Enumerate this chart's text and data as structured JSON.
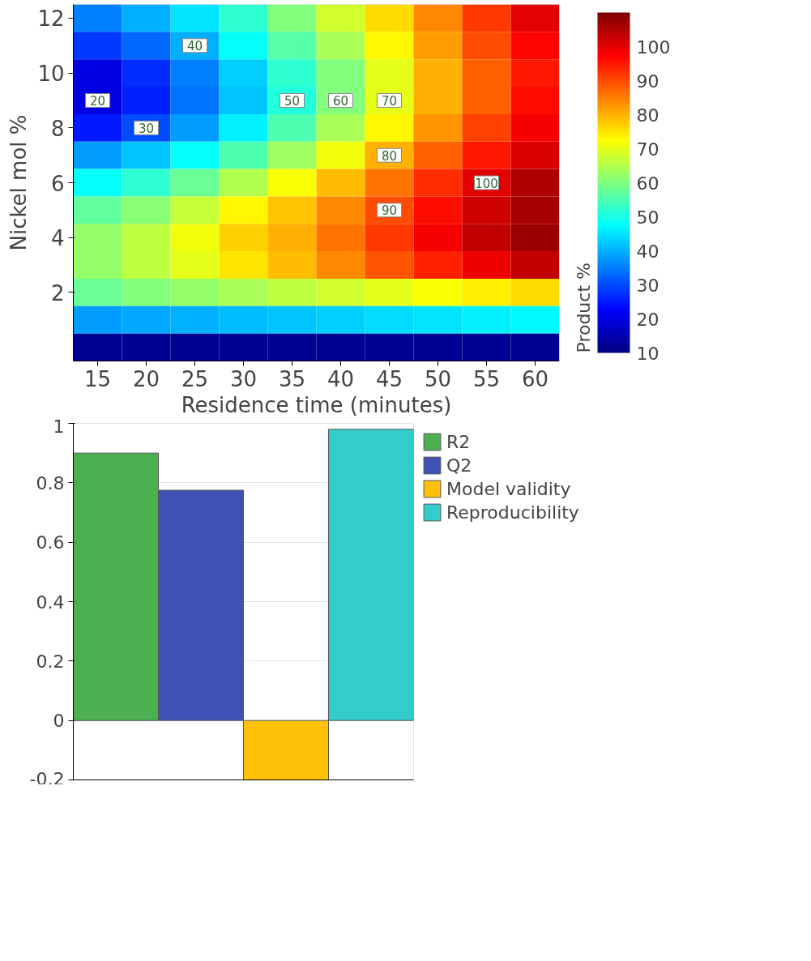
{
  "chart_data": [
    {
      "type": "heatmap",
      "xlabel": "Residence time (minutes)",
      "ylabel": "Nickel mol %",
      "clabel": "Product %",
      "categories": [
        "15",
        "20",
        "25",
        "30",
        "35",
        "40",
        "45",
        "50",
        "55",
        "60"
      ],
      "y_categories": [
        "12",
        null,
        "10",
        null,
        "8",
        null,
        "6",
        null,
        "4",
        null,
        "2",
        null,
        null
      ],
      "cells": [
        [
          35,
          40,
          45,
          52,
          60,
          68,
          76,
          84,
          92,
          100
        ],
        [
          28,
          33,
          40,
          48,
          56,
          64,
          73,
          82,
          90,
          97
        ],
        [
          20,
          27,
          35,
          43,
          52,
          60,
          70,
          80,
          88,
          95
        ],
        [
          20,
          26,
          34,
          42,
          51,
          60,
          70,
          80,
          88,
          96
        ],
        [
          25,
          30,
          38,
          46,
          55,
          64,
          73,
          83,
          91,
          98
        ],
        [
          38,
          42,
          48,
          55,
          63,
          71,
          80,
          88,
          95,
          101
        ],
        [
          48,
          52,
          58,
          65,
          72,
          79,
          86,
          93,
          100,
          105
        ],
        [
          57,
          61,
          67,
          73,
          78,
          84,
          90,
          96,
          102,
          106
        ],
        [
          62,
          66,
          71,
          77,
          80,
          86,
          92,
          98,
          103,
          107
        ],
        [
          62,
          66,
          70,
          75,
          79,
          84,
          89,
          94,
          99,
          103
        ],
        [
          58,
          60,
          62,
          64,
          66,
          68,
          70,
          72,
          74,
          76
        ],
        [
          38,
          39,
          40,
          41,
          42,
          43,
          44,
          45,
          46,
          47
        ],
        [
          12,
          12,
          12,
          12,
          12,
          12,
          12,
          12,
          12,
          12
        ]
      ],
      "clim": [
        10,
        110
      ],
      "cticks": [
        10,
        20,
        30,
        40,
        50,
        60,
        70,
        80,
        90,
        100
      ],
      "annotations": [
        "20",
        "30",
        "40",
        "50",
        "60",
        "70",
        "80",
        "90",
        "100"
      ]
    },
    {
      "type": "bar",
      "categories": [
        null,
        null,
        null,
        null
      ],
      "series": [
        {
          "name": "R2",
          "color": "#4caf50",
          "values": [
            0.9,
            null,
            null,
            null
          ]
        },
        {
          "name": "Q2",
          "color": "#3f51b5",
          "values": [
            null,
            0.775,
            null,
            null
          ]
        },
        {
          "name": "Model validity",
          "color": "#ffc107",
          "values": [
            null,
            null,
            -0.2,
            null
          ]
        },
        {
          "name": "Reproducibility",
          "color": "#33cccc",
          "values": [
            null,
            null,
            null,
            0.98
          ]
        }
      ],
      "ylim": [
        -0.2,
        1
      ],
      "yticks": [
        -0.2,
        0,
        0.2,
        0.4,
        0.6,
        0.8,
        1
      ],
      "grid": "y",
      "legend": "right"
    }
  ]
}
